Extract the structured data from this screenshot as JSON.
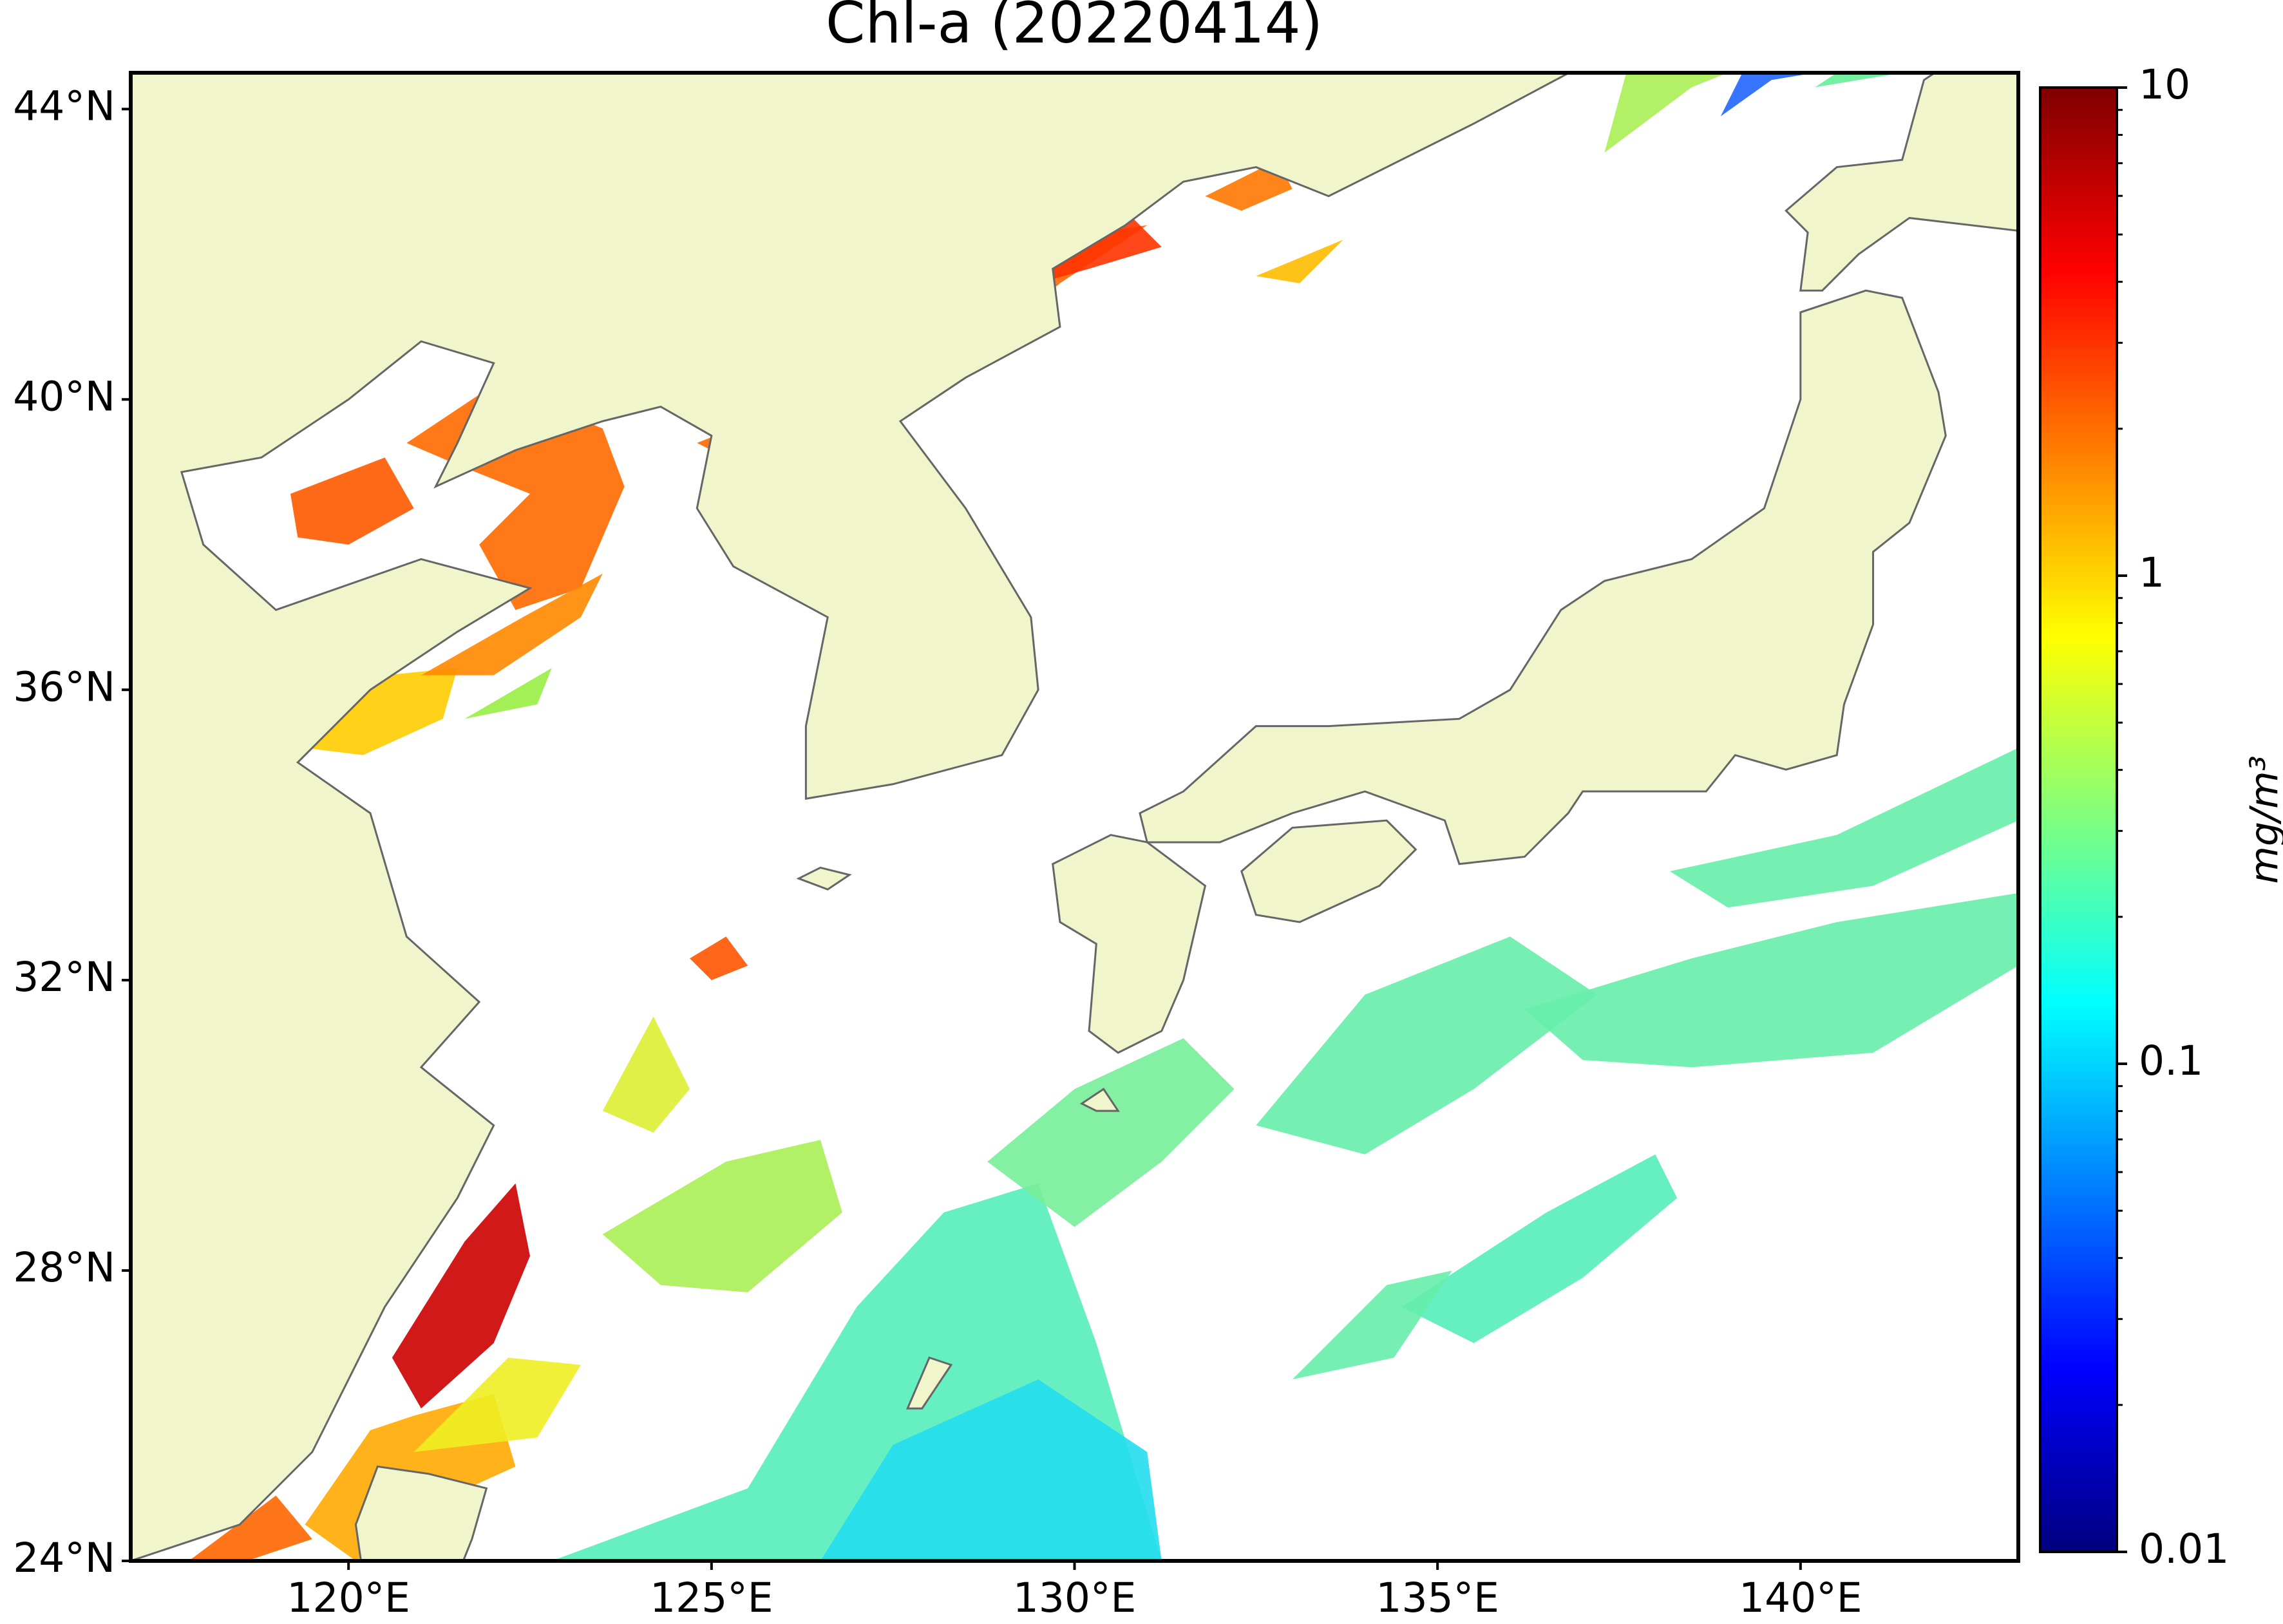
{
  "chart_data": {
    "type": "map",
    "title": "Chl-a (20220414)",
    "xlim": [
      117,
      143
    ],
    "ylim": [
      24,
      44.5
    ],
    "xticks": [
      {
        "value": 120,
        "label": "120°E"
      },
      {
        "value": 125,
        "label": "125°E"
      },
      {
        "value": 130,
        "label": "130°E"
      },
      {
        "value": 135,
        "label": "135°E"
      },
      {
        "value": 140,
        "label": "140°E"
      }
    ],
    "yticks": [
      {
        "value": 24,
        "label": "24°N"
      },
      {
        "value": 28,
        "label": "28°N"
      },
      {
        "value": 32,
        "label": "32°N"
      },
      {
        "value": 36,
        "label": "36°N"
      },
      {
        "value": 40,
        "label": "40°N"
      },
      {
        "value": 44,
        "label": "44°N"
      }
    ],
    "colorbar": {
      "label": "mg/m³",
      "clim": [
        0.01,
        10
      ],
      "log_scale": true,
      "ticks": [
        0.01,
        0.1,
        1,
        10
      ],
      "colormap": [
        "#00007f",
        "#0000ff",
        "#007fff",
        "#00ffff",
        "#7fff7f",
        "#ffff00",
        "#ff7f00",
        "#ff0000",
        "#7f0000"
      ]
    }
  }
}
